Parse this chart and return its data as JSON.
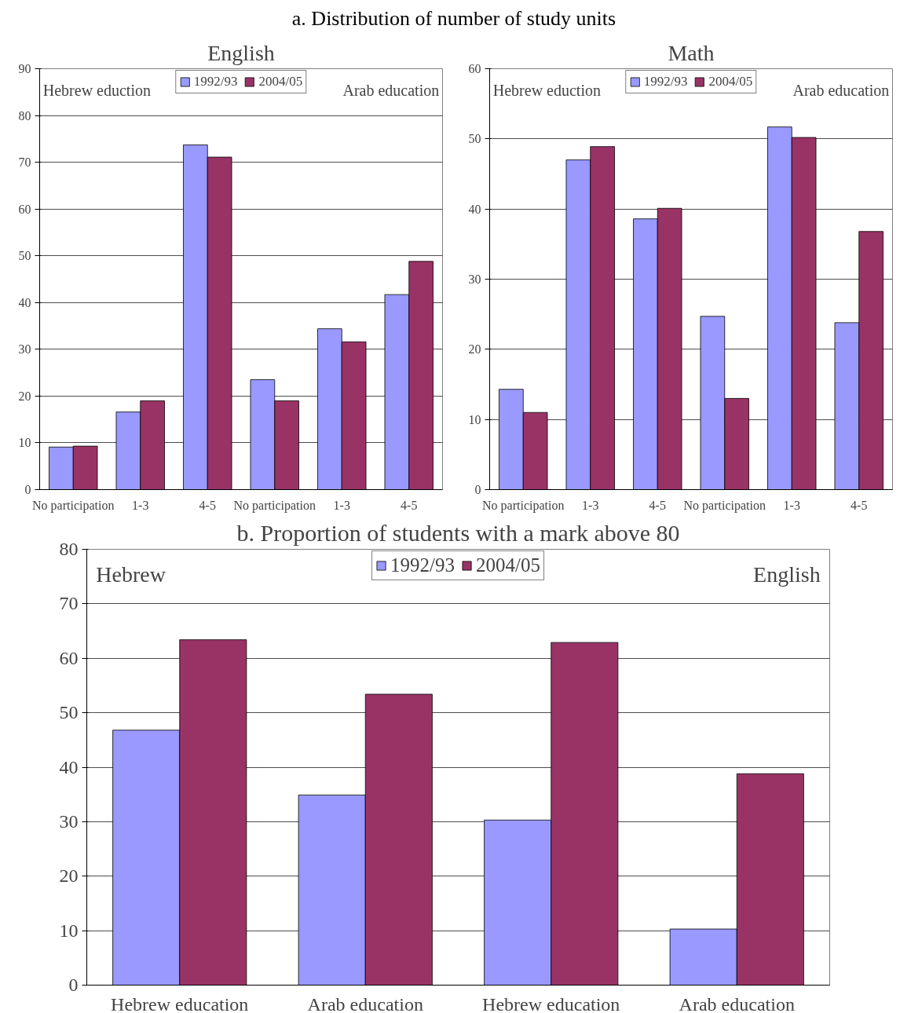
{
  "chart_data": [
    {
      "type": "bar",
      "title": "a. Distribution of number of study units",
      "subtitle": "English",
      "categories": [
        "No participation",
        "1-3",
        "4-5",
        "No participation",
        "1-3",
        "4-5"
      ],
      "series": [
        {
          "name": "1992/93",
          "color": "#9999ff",
          "values": [
            9.1,
            16.6,
            73.7,
            23.5,
            34.4,
            41.7
          ]
        },
        {
          "name": "2004/05",
          "color": "#993366",
          "values": [
            9.3,
            19.0,
            71.1,
            19.0,
            31.6,
            48.8
          ]
        }
      ],
      "annotations": [
        "Hebrew eduction",
        "Arab education"
      ],
      "ylim": [
        0,
        90
      ],
      "yticks": [
        0,
        10,
        20,
        30,
        40,
        50,
        60,
        70,
        80,
        90
      ],
      "grid": "y",
      "legend": "top"
    },
    {
      "type": "bar",
      "title": "Math",
      "categories": [
        "No participation",
        "1-3",
        "4-5",
        "No participation",
        "1-3",
        "4-5"
      ],
      "series": [
        {
          "name": "1992/93",
          "color": "#9999ff",
          "values": [
            14.3,
            47.0,
            38.6,
            24.7,
            51.7,
            23.8
          ]
        },
        {
          "name": "2004/05",
          "color": "#993366",
          "values": [
            11.0,
            48.9,
            40.1,
            13.0,
            50.2,
            36.8
          ]
        }
      ],
      "annotations": [
        "Hebrew eduction",
        "Arab education"
      ],
      "ylim": [
        0,
        60
      ],
      "yticks": [
        0,
        10,
        20,
        30,
        40,
        50,
        60
      ],
      "grid": "y",
      "legend": "top"
    },
    {
      "type": "bar",
      "title": "b. Proportion of students with a mark above 80",
      "categories": [
        "Hebrew education",
        "Arab education",
        "Hebrew education",
        "Arab education"
      ],
      "series": [
        {
          "name": "1992/93",
          "color": "#9999ff",
          "values": [
            46.8,
            34.9,
            30.3,
            10.3
          ]
        },
        {
          "name": "2004/05",
          "color": "#993366",
          "values": [
            63.4,
            53.4,
            62.9,
            38.8
          ]
        }
      ],
      "annotations": [
        "Hebrew",
        "English"
      ],
      "ylim": [
        0,
        80
      ],
      "yticks": [
        0,
        10,
        20,
        30,
        40,
        50,
        60,
        70,
        80
      ],
      "grid": "y",
      "legend": "top"
    }
  ]
}
